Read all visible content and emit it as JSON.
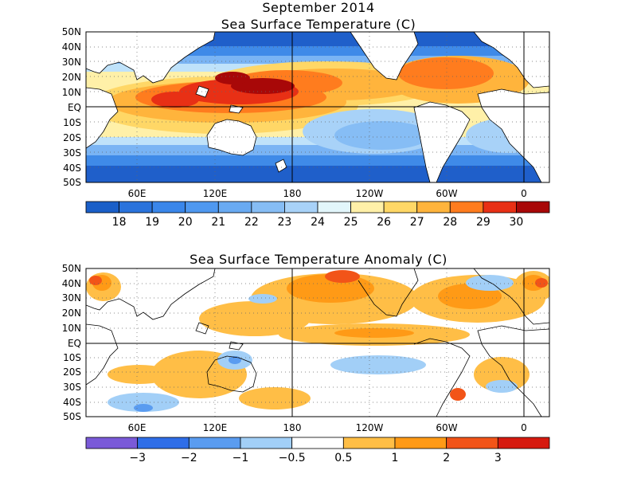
{
  "header": {
    "date": "September 2014"
  },
  "panels": [
    {
      "id": "sst",
      "title": "Sea Surface Temperature (C)",
      "colorbar_labels": [
        "18",
        "19",
        "20",
        "21",
        "22",
        "23",
        "24",
        "25",
        "26",
        "27",
        "28",
        "29",
        "30"
      ],
      "colorbar_colors": [
        "#1a5fc8",
        "#2a73dc",
        "#3a86ea",
        "#4f98f0",
        "#69aaf2",
        "#86bdf5",
        "#a8d2f8",
        "#e2f6fb",
        "#fff0a8",
        "#ffd766",
        "#ffb43c",
        "#ff7c1e",
        "#e83015",
        "#a80808"
      ]
    },
    {
      "id": "anom",
      "title": "Sea Surface Temperature Anomaly (C)",
      "colorbar_labels": [
        "−3",
        "−2",
        "−1",
        "−0.5",
        "0.5",
        "1",
        "2",
        "3"
      ],
      "colorbar_colors": [
        "#7a5ad8",
        "#2f6ee8",
        "#5a9cf0",
        "#a2cff7",
        "#ffffff",
        "#ffbe46",
        "#ff9a16",
        "#f25418",
        "#d61a0f"
      ]
    }
  ],
  "axes": {
    "lat_labels": [
      "50N",
      "40N",
      "30N",
      "20N",
      "10N",
      "EQ",
      "10S",
      "20S",
      "30S",
      "40S",
      "50S"
    ],
    "lon_labels": [
      "60E",
      "120E",
      "180",
      "120W",
      "60W",
      "0"
    ]
  }
}
